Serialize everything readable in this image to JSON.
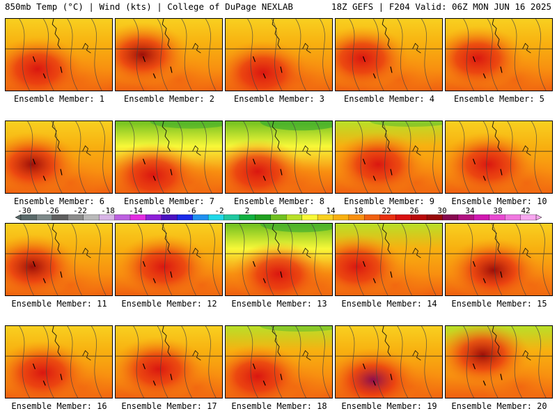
{
  "header": {
    "title_left": "850mb Temp (°C) | Wind (kts) | College of DuPage NEXLAB",
    "title_right": "18Z GEFS | F204 Valid: 06Z MON JUN 16 2025"
  },
  "colorbar": {
    "labels": [
      "-30",
      "-26",
      "-22",
      "-18",
      "-14",
      "-10",
      "-6",
      "-2",
      "2",
      "6",
      "10",
      "14",
      "18",
      "22",
      "26",
      "30",
      "34",
      "38",
      "42"
    ],
    "colors": [
      "#5a6a6a",
      "#7e8a8a",
      "#5e5e5e",
      "#8c8c8c",
      "#b9b9b9",
      "#d8b5e6",
      "#bd60e0",
      "#e22ce0",
      "#8e20d8",
      "#4a10c0",
      "#1a2ae8",
      "#2090f0",
      "#20d8e8",
      "#20c8a0",
      "#10b040",
      "#20a020",
      "#70c020",
      "#b8e028",
      "#f8f838",
      "#f8d020",
      "#f8b010",
      "#f89010",
      "#f06010",
      "#e83010",
      "#d81010",
      "#b80808",
      "#980808",
      "#880850",
      "#b01080",
      "#d018b0",
      "#e848d0",
      "#f078e0",
      "#f8a8f0"
    ],
    "values": [
      -32,
      -30,
      -28,
      -26,
      -24,
      -22,
      -20,
      -18,
      -16,
      -14,
      -12,
      -10,
      -8,
      -6,
      -4,
      -2,
      0,
      2,
      4,
      6,
      8,
      10,
      12,
      14,
      16,
      18,
      20,
      22,
      24,
      26,
      28,
      30,
      32,
      34,
      36,
      38,
      40,
      42
    ]
  },
  "panels": [
    {
      "label": "Ensemble Member: 1"
    },
    {
      "label": "Ensemble Member: 2"
    },
    {
      "label": "Ensemble Member: 3"
    },
    {
      "label": "Ensemble Member: 4"
    },
    {
      "label": "Ensemble Member: 5"
    },
    {
      "label": "Ensemble Member: 6"
    },
    {
      "label": "Ensemble Member: 7"
    },
    {
      "label": "Ensemble Member: 8"
    },
    {
      "label": "Ensemble Member: 9"
    },
    {
      "label": "Ensemble Member: 10"
    },
    {
      "label": "Ensemble Member: 11"
    },
    {
      "label": "Ensemble Member: 12"
    },
    {
      "label": "Ensemble Member: 13"
    },
    {
      "label": "Ensemble Member: 14"
    },
    {
      "label": "Ensemble Member: 15"
    },
    {
      "label": "Ensemble Member: 16"
    },
    {
      "label": "Ensemble Member: 17"
    },
    {
      "label": "Ensemble Member: 18"
    },
    {
      "label": "Ensemble Member: 19"
    },
    {
      "label": "Ensemble Member: 20"
    }
  ]
}
